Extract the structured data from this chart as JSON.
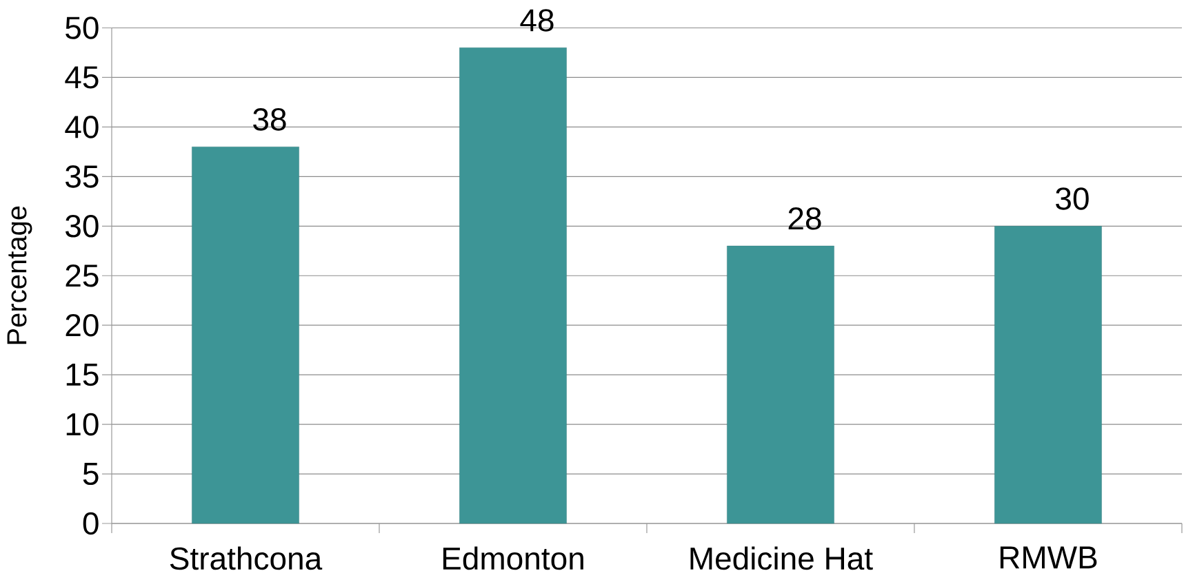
{
  "chart_data": {
    "type": "bar",
    "ylabel": "Percentage",
    "categories": [
      "Strathcona",
      "Edmonton",
      "Medicine Hat",
      "RMWB"
    ],
    "values": [
      38,
      48,
      28,
      30
    ],
    "color": "#3d9596",
    "ylim": [
      0,
      50
    ],
    "yticks": [
      0,
      5,
      10,
      15,
      20,
      25,
      30,
      35,
      40,
      45,
      50
    ],
    "grid": "y",
    "data_labels": true
  }
}
